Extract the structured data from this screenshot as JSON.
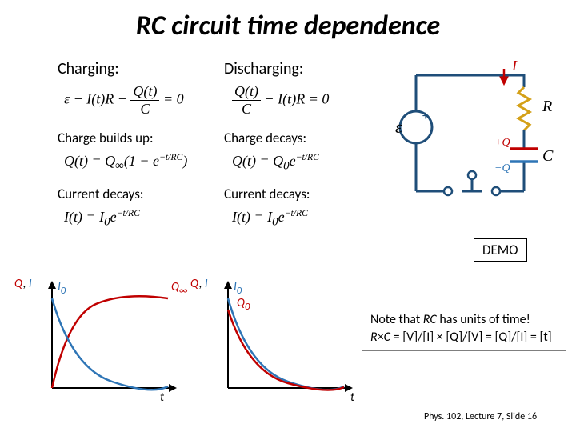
{
  "title": {
    "text": "RC circuit time dependence",
    "fontsize": 34
  },
  "columns": {
    "left": {
      "header": "Charging:",
      "eq1_html": "<i>ε</i> − <i>I</i>(<i>t</i>)<i>R</i> − <span class='frac'><span class='num'><i>Q</i>(<i>t</i>)</span><span class='den'><i>C</i></span></span> = 0",
      "sub1": "Charge builds up:",
      "eq2_html": "<i>Q</i>(<i>t</i>) = <i>Q</i><sub>∞</sub>(1 − <i>e</i><sup>−<i>t</i>/<i>RC</i></sup>)",
      "sub2": "Current decays:",
      "eq3_html": "<i>I</i>(<i>t</i>) = <i>I</i><sub>0</sub><i>e</i><sup>−<i>t</i>/<i>RC</i></sup>"
    },
    "right": {
      "header": "Discharging:",
      "eq1_html": "<span class='frac'><span class='num'><i>Q</i>(<i>t</i>)</span><span class='den'><i>C</i></span></span> − <i>I</i>(<i>t</i>)<i>R</i> = 0",
      "sub1": "Charge decays:",
      "eq2_html": "<i>Q</i>(<i>t</i>) = <i>Q</i><sub>0</sub><i>e</i><sup>−<i>t</i>/<i>RC</i></sup>",
      "sub2": "Current decays:",
      "eq3_html": "<i>I</i>(<i>t</i>) = <i>I</i><sub>0</sub><i>e</i><sup>−<i>t</i>/<i>RC</i></sup>"
    }
  },
  "circuit": {
    "epsilon": "ε",
    "plus": "+",
    "I": "I",
    "R": "R",
    "C": "C",
    "plusQ": "+Q",
    "minusQ": "−Q",
    "wire_color": "#1f4e79",
    "wire_width": 3,
    "resistor_color": "#d4a017",
    "cap_plus_color": "#c00000",
    "cap_minus_color": "#2e75b6",
    "I_color": "#c00000",
    "plusQ_color": "#c00000",
    "minusQ_color": "#2e75b6"
  },
  "graphs": {
    "axis_color": "#000000",
    "axis_width": 2,
    "arrowhead": 7,
    "Q_color": "#c00000",
    "I_color": "#2e75b6",
    "curve_width": 2.5,
    "left": {
      "ylabel_html": "<span style='color:#c00000'>Q</span>, <span style='color:#2e75b6'>I</span>",
      "I0_label": "I",
      "I0_sub": "0",
      "Qinf_label": "Q",
      "Qinf_sub": "∞",
      "xlabel": "t",
      "Q_curve": "charging_exp",
      "I_curve": "decay_exp"
    },
    "right": {
      "ylabel_html": "<span style='color:#c00000'>Q</span>, <span style='color:#2e75b6'>I</span>",
      "I0_label": "I",
      "I0_sub": "0",
      "Q0_label": "Q",
      "Q0_sub": "0",
      "xlabel": "t",
      "Q_curve": "decay_exp",
      "I_curve": "decay_exp"
    }
  },
  "demo": "DEMO",
  "note_line1_html": "Note that <span class='rc'>RC</span> has units of time!",
  "note_line2_html": "<span class='rc'>R</span>×<span class='rc'>C</span> = [V]/[I] × [Q]/[V] = [Q]/[I] = [t]",
  "footer": "Phys. 102, Lecture 7, Slide 16",
  "layout": {
    "header_fontsize": 20,
    "subhead_fontsize": 17,
    "eq_fontsize": 18,
    "note_fontsize": 16,
    "demo_fontsize": 17
  }
}
